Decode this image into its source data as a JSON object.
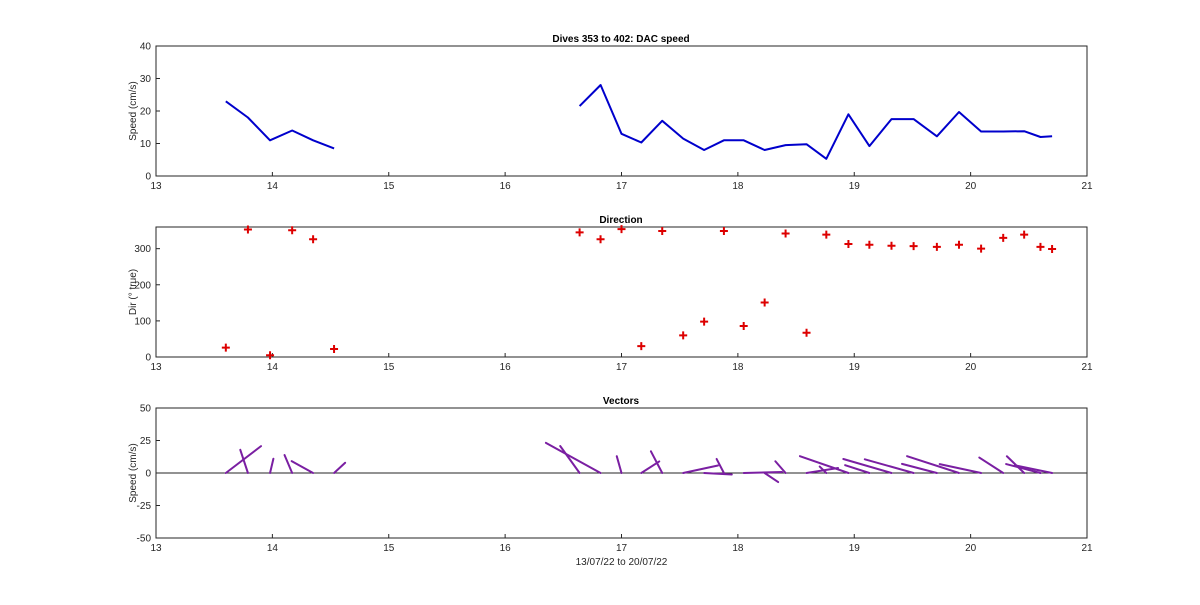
{
  "chart_data": [
    {
      "type": "line",
      "title": "Dives 353 to 402: DAC speed",
      "xlabel": "",
      "ylabel": "Speed (cm/s)",
      "xlim": [
        13,
        21
      ],
      "ylim": [
        0,
        40
      ],
      "xticks": [
        13,
        14,
        15,
        16,
        17,
        18,
        19,
        20,
        21
      ],
      "yticks": [
        0,
        10,
        20,
        30,
        40
      ],
      "grid": true,
      "series": [
        {
          "color": "#0000cc",
          "segments": [
            {
              "x": [
                13.6,
                13.79,
                13.98,
                14.17,
                14.35,
                14.53
              ],
              "y": [
                23,
                18,
                11,
                14,
                11,
                8.5
              ]
            },
            {
              "x": [
                16.64,
                16.82,
                17.0,
                17.17,
                17.35,
                17.53,
                17.71,
                17.88,
                18.05,
                18.23,
                18.41,
                18.59,
                18.76,
                18.95,
                19.13,
                19.32,
                19.51,
                19.71,
                19.9,
                20.09,
                20.28,
                20.46,
                20.6,
                20.7
              ],
              "y": [
                21.5,
                28,
                13,
                10.3,
                17,
                11.5,
                8,
                11,
                11,
                8,
                9.5,
                9.8,
                5.3,
                19,
                9.2,
                17.5,
                17.5,
                12.2,
                19.7,
                13.7,
                13.7,
                13.8,
                12,
                12.2
              ]
            }
          ]
        }
      ]
    },
    {
      "type": "scatter",
      "title": "Direction",
      "xlabel": "",
      "ylabel": "Dir (° true)",
      "xlim": [
        13,
        21
      ],
      "ylim": [
        0,
        360
      ],
      "xticks": [
        13,
        14,
        15,
        16,
        17,
        18,
        19,
        20,
        21
      ],
      "yticks": [
        0,
        100,
        200,
        300
      ],
      "grid": true,
      "marker": "+",
      "color": "#dd0000",
      "x": [
        13.6,
        13.79,
        13.98,
        14.17,
        14.35,
        14.53,
        16.64,
        16.82,
        17.0,
        17.17,
        17.35,
        17.53,
        17.71,
        17.88,
        18.05,
        18.23,
        18.41,
        18.59,
        18.76,
        18.95,
        19.13,
        19.32,
        19.51,
        19.71,
        19.9,
        20.09,
        20.28,
        20.46,
        20.6,
        20.7
      ],
      "y": [
        26,
        353,
        5,
        351,
        326,
        22,
        345,
        326,
        354,
        30,
        349,
        60,
        98,
        349,
        86,
        151,
        342,
        67,
        339,
        313,
        311,
        308,
        307,
        305,
        311,
        300,
        330,
        339,
        305,
        299
      ]
    },
    {
      "type": "vector",
      "title": "Vectors",
      "xlabel": "13/07/22 to 20/07/22",
      "ylabel": "Speed (cm/s)",
      "xlim": [
        13,
        21
      ],
      "ylim": [
        -50,
        50
      ],
      "xticks": [
        13,
        14,
        15,
        16,
        17,
        18,
        19,
        20,
        21
      ],
      "yticks": [
        -50,
        -25,
        0,
        25,
        50
      ],
      "grid": true,
      "color": "#7a1fa2",
      "x": [
        13.6,
        13.79,
        13.98,
        14.17,
        14.35,
        14.53,
        16.64,
        16.82,
        17.0,
        17.17,
        17.35,
        17.53,
        17.71,
        17.88,
        18.05,
        18.23,
        18.41,
        18.59,
        18.76,
        18.95,
        19.13,
        19.32,
        19.51,
        19.71,
        19.9,
        20.09,
        20.28,
        20.46,
        20.6,
        20.7
      ],
      "speed": [
        23,
        18,
        11,
        14,
        11,
        8.5,
        21.5,
        28,
        13,
        10.3,
        17,
        11.5,
        8,
        11,
        11,
        8,
        9.5,
        9.8,
        5.3,
        19,
        9.2,
        17.5,
        17.5,
        12.2,
        19.7,
        13.7,
        13.7,
        13.8,
        12,
        12.2
      ],
      "direction": [
        26,
        353,
        5,
        351,
        326,
        22,
        345,
        326,
        354,
        30,
        349,
        60,
        98,
        349,
        86,
        151,
        342,
        67,
        339,
        313,
        311,
        308,
        307,
        305,
        311,
        300,
        330,
        339,
        305,
        299
      ]
    }
  ]
}
